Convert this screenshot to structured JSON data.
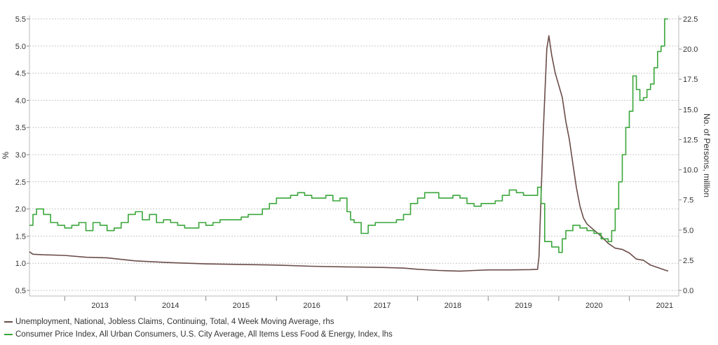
{
  "chart_data": {
    "type": "line",
    "title": "",
    "ylabel_left": "%",
    "ylabel_right": "No. of Persons, million",
    "ylim_left": [
      0.5,
      5.5
    ],
    "ylim_right": [
      0.0,
      22.5
    ],
    "left_ticks": [
      "0.5",
      "1.0",
      "1.5",
      "2.0",
      "2.5",
      "3.0",
      "3.5",
      "4.0",
      "4.5",
      "5.0",
      "5.5"
    ],
    "right_ticks": [
      "0.0",
      "2.5",
      "5.0",
      "7.5",
      "10.0",
      "12.5",
      "15.0",
      "17.5",
      "20.0",
      "22.5"
    ],
    "x_ticks": [
      "2013",
      "2014",
      "2015",
      "2016",
      "2017",
      "2018",
      "2019",
      "2020",
      "2021"
    ],
    "xlim": [
      2012.5,
      2021.7
    ],
    "grid": "horizontal dotted",
    "legend_position": "bottom",
    "series": [
      {
        "name": "Unemployment, National, Jobless Claims, Continuing, Total, 4 Week Moving Average, rhs",
        "axis": "right",
        "color": "#6b4c48",
        "x": [
          2012.5,
          2012.55,
          2012.7,
          2013.0,
          2013.3,
          2013.6,
          2014.0,
          2014.5,
          2015.0,
          2015.5,
          2016.0,
          2016.5,
          2017.0,
          2017.5,
          2017.8,
          2018.0,
          2018.3,
          2018.6,
          2018.8,
          2019.0,
          2019.3,
          2019.6,
          2019.7,
          2019.72,
          2019.78,
          2019.83,
          2019.86,
          2019.9,
          2019.95,
          2020.0,
          2020.05,
          2020.1,
          2020.15,
          2020.2,
          2020.25,
          2020.3,
          2020.35,
          2020.4,
          2020.5,
          2020.6,
          2020.7,
          2020.8,
          2020.9,
          2021.0,
          2021.1,
          2021.2,
          2021.3,
          2021.4,
          2021.5,
          2021.55
        ],
        "y": [
          3.2,
          3.0,
          2.95,
          2.9,
          2.75,
          2.7,
          2.45,
          2.3,
          2.2,
          2.15,
          2.1,
          2.0,
          1.95,
          1.9,
          1.85,
          1.75,
          1.65,
          1.6,
          1.65,
          1.7,
          1.7,
          1.72,
          1.75,
          2.8,
          13.0,
          20.0,
          21.1,
          19.5,
          18.0,
          17.0,
          16.0,
          14.0,
          12.5,
          10.5,
          8.5,
          7.0,
          6.0,
          5.5,
          5.0,
          4.5,
          3.9,
          3.5,
          3.4,
          3.1,
          2.6,
          2.5,
          2.1,
          1.9,
          1.7,
          1.6
        ]
      },
      {
        "name": "Consumer Price Index, All Urban Consumers, U.S. City Average, All Items Less Food & Energy, Index, lhs",
        "axis": "left",
        "color": "#3aa63a",
        "x": [
          2012.5,
          2012.55,
          2012.6,
          2012.7,
          2012.8,
          2012.9,
          2013.0,
          2013.1,
          2013.2,
          2013.3,
          2013.4,
          2013.5,
          2013.6,
          2013.7,
          2013.8,
          2013.9,
          2014.0,
          2014.1,
          2014.2,
          2014.3,
          2014.4,
          2014.5,
          2014.6,
          2014.7,
          2014.8,
          2014.9,
          2015.0,
          2015.1,
          2015.2,
          2015.3,
          2015.4,
          2015.5,
          2015.6,
          2015.7,
          2015.8,
          2015.9,
          2016.0,
          2016.1,
          2016.2,
          2016.3,
          2016.4,
          2016.5,
          2016.6,
          2016.7,
          2016.8,
          2016.9,
          2017.0,
          2017.05,
          2017.1,
          2017.2,
          2017.3,
          2017.4,
          2017.5,
          2017.6,
          2017.7,
          2017.8,
          2017.9,
          2018.0,
          2018.1,
          2018.2,
          2018.3,
          2018.4,
          2018.5,
          2018.6,
          2018.7,
          2018.8,
          2018.9,
          2019.0,
          2019.1,
          2019.2,
          2019.3,
          2019.4,
          2019.5,
          2019.6,
          2019.7,
          2019.75,
          2019.8,
          2019.9,
          2020.0,
          2020.05,
          2020.1,
          2020.2,
          2020.3,
          2020.4,
          2020.5,
          2020.6,
          2020.7,
          2020.75,
          2020.8,
          2020.85,
          2020.9,
          2020.95,
          2021.0,
          2021.05,
          2021.1,
          2021.15,
          2021.2,
          2021.25,
          2021.3,
          2021.35,
          2021.4,
          2021.45,
          2021.5,
          2021.55
        ],
        "y": [
          1.7,
          1.9,
          2.0,
          1.9,
          1.75,
          1.7,
          1.65,
          1.7,
          1.75,
          1.6,
          1.75,
          1.7,
          1.6,
          1.65,
          1.75,
          1.9,
          1.95,
          1.8,
          1.9,
          1.75,
          1.8,
          1.75,
          1.7,
          1.65,
          1.65,
          1.75,
          1.7,
          1.75,
          1.8,
          1.8,
          1.8,
          1.85,
          1.9,
          1.9,
          2.0,
          2.1,
          2.2,
          2.2,
          2.25,
          2.3,
          2.25,
          2.2,
          2.2,
          2.25,
          2.15,
          2.2,
          1.95,
          1.8,
          1.75,
          1.55,
          1.7,
          1.75,
          1.75,
          1.75,
          1.8,
          1.9,
          2.1,
          2.2,
          2.3,
          2.3,
          2.2,
          2.2,
          2.25,
          2.2,
          2.1,
          2.05,
          2.1,
          2.1,
          2.15,
          2.25,
          2.35,
          2.3,
          2.25,
          2.25,
          2.4,
          2.1,
          1.4,
          1.3,
          1.2,
          1.45,
          1.6,
          1.7,
          1.65,
          1.6,
          1.55,
          1.45,
          1.4,
          1.6,
          2.0,
          2.5,
          3.0,
          3.5,
          3.8,
          4.45,
          4.2,
          4.0,
          4.05,
          4.2,
          4.3,
          4.6,
          4.9,
          5.0,
          5.5,
          5.5
        ]
      }
    ]
  }
}
